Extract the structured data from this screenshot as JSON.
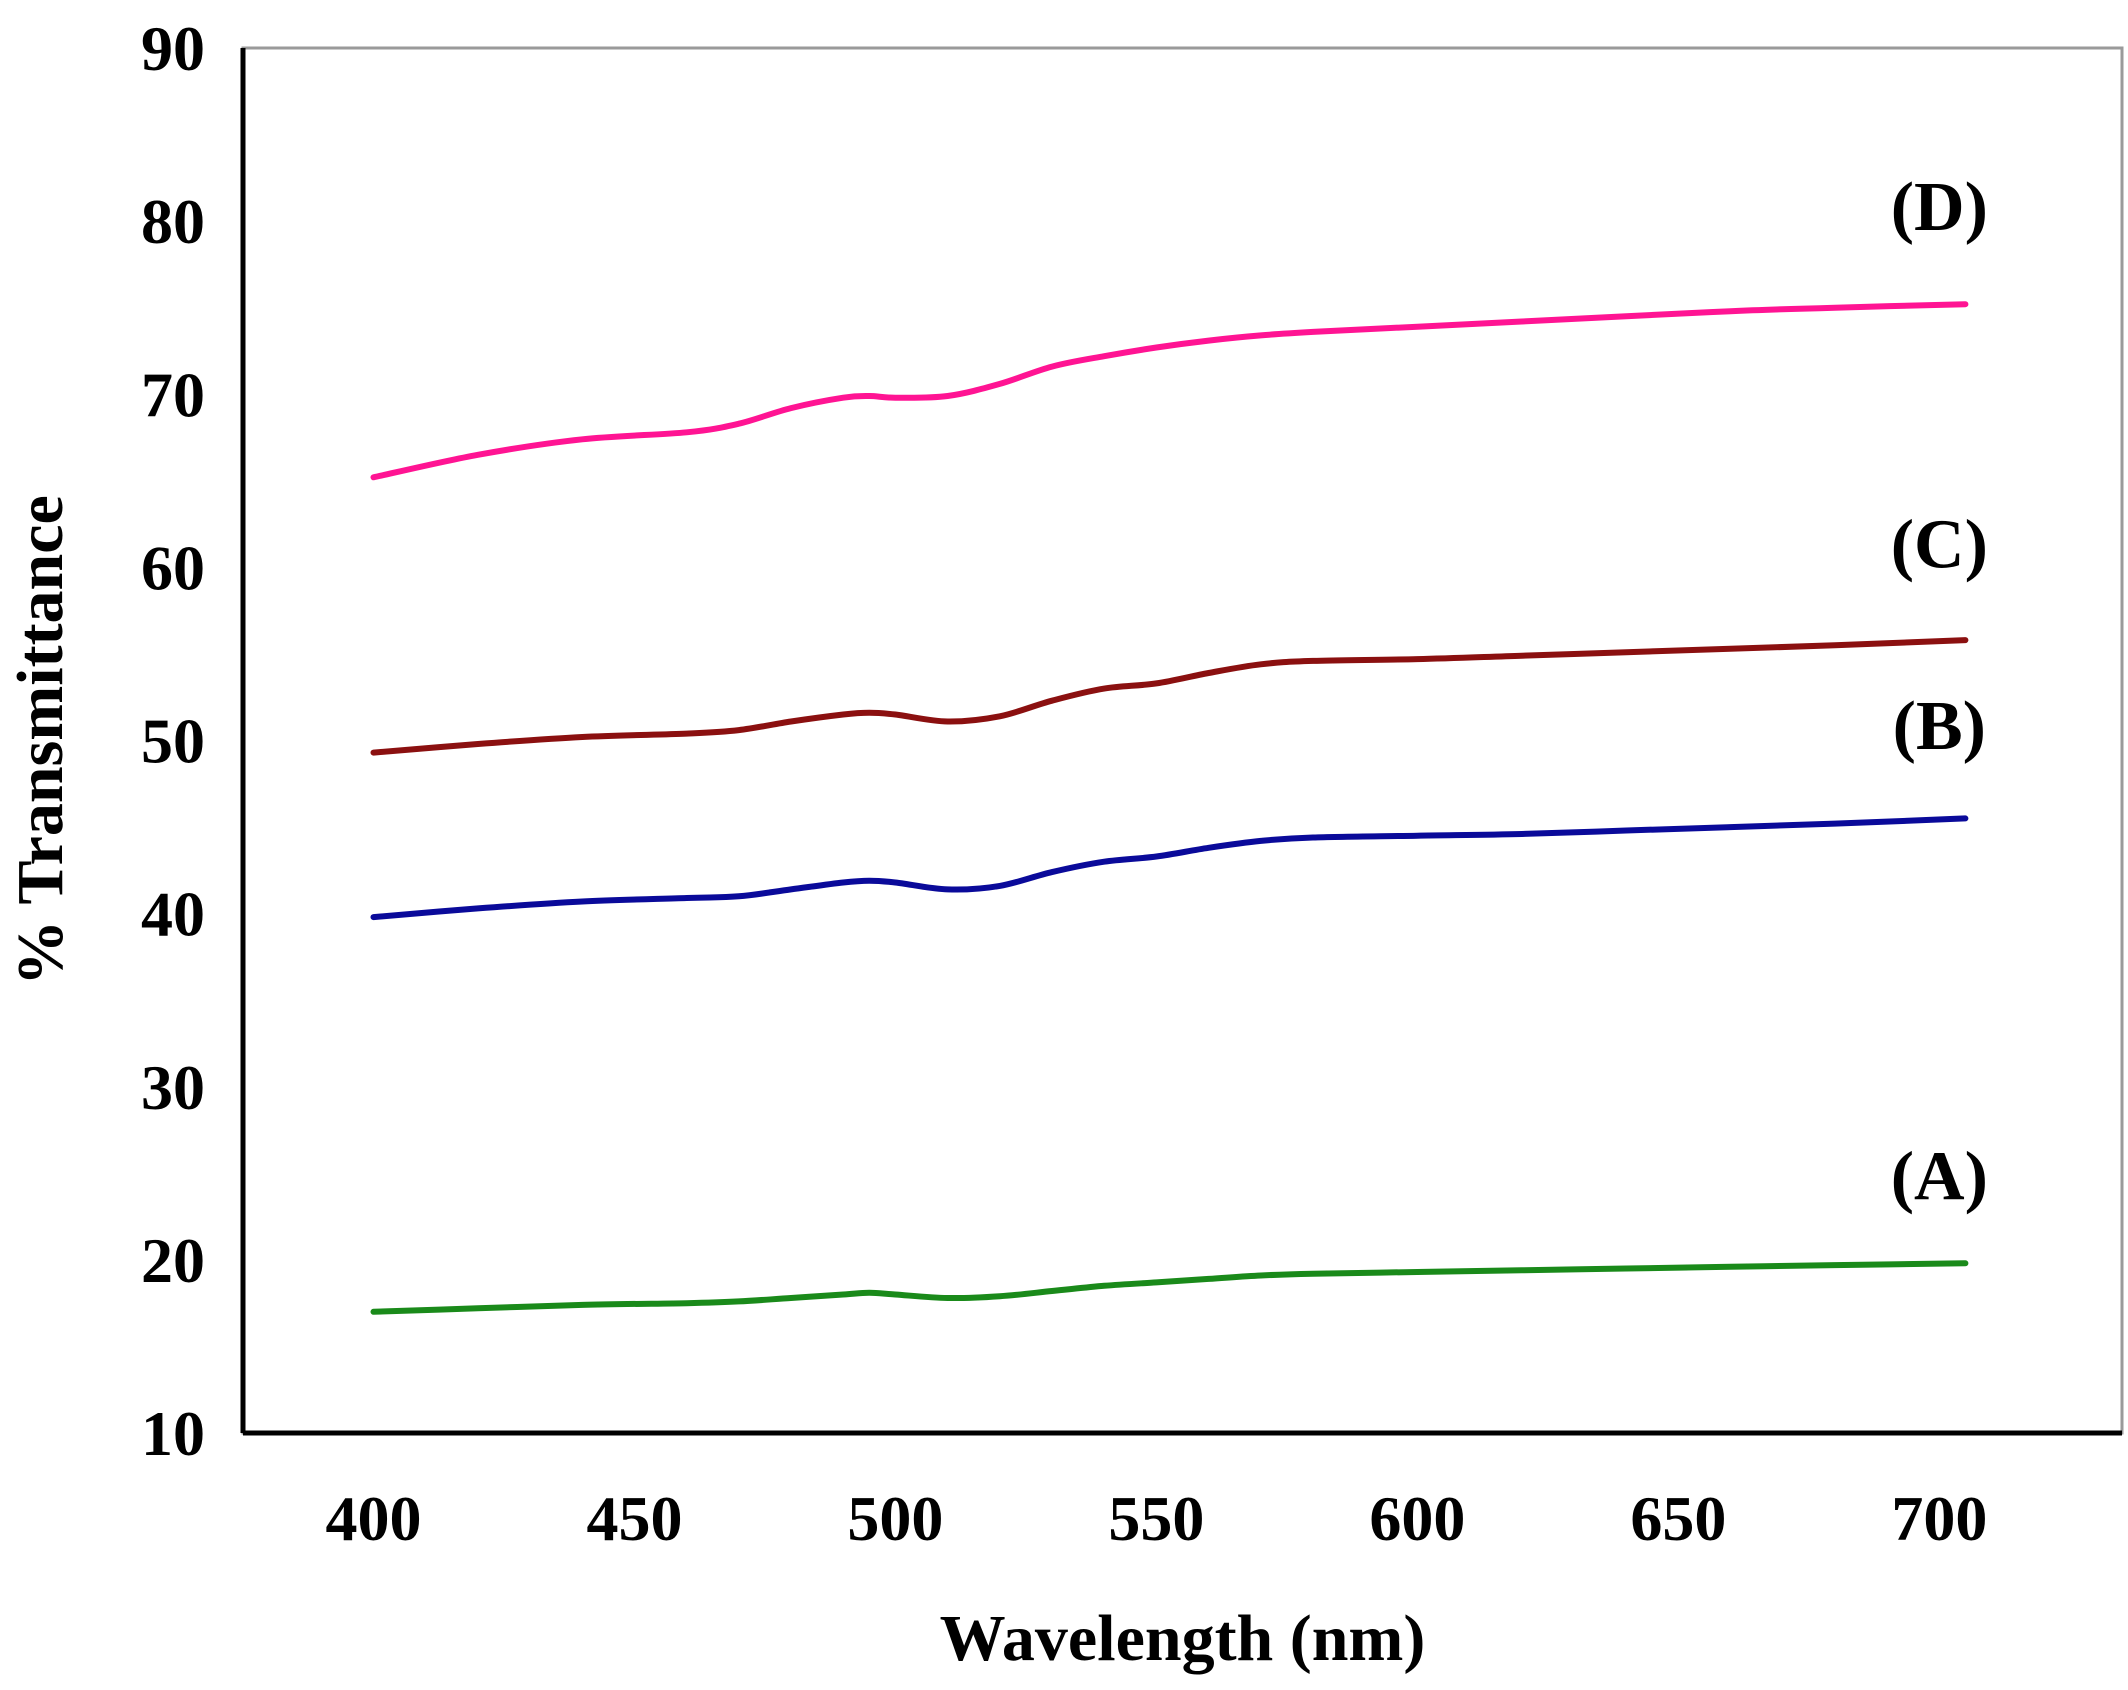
{
  "chart_data": {
    "type": "line",
    "title": "",
    "xlabel": "Wavelength (nm)",
    "ylabel": "% Transmittance",
    "xlim": [
      375,
      735
    ],
    "ylim": [
      10,
      90
    ],
    "xticks": [
      400,
      450,
      500,
      550,
      600,
      650,
      700
    ],
    "yticks": [
      10,
      20,
      30,
      40,
      50,
      60,
      70,
      80,
      90
    ],
    "xtick_labels": [
      "400",
      "450",
      "500",
      "550",
      "600",
      "650",
      "700"
    ],
    "ytick_labels": [
      "10",
      "20",
      "30",
      "40",
      "50",
      "60",
      "70",
      "80",
      "90"
    ],
    "grid": false,
    "legend": "none",
    "series": [
      {
        "name": "(A)",
        "color": "#1a8a1a",
        "label_at": [
          700,
          23.5
        ],
        "x": [
          400,
          420,
          440,
          460,
          470,
          480,
          490,
          495,
          500,
          510,
          520,
          530,
          540,
          550,
          560,
          570,
          580,
          600,
          620,
          640,
          660,
          680,
          705
        ],
        "y": [
          17.0,
          17.2,
          17.4,
          17.5,
          17.6,
          17.8,
          18.0,
          18.1,
          18.0,
          17.8,
          17.9,
          18.2,
          18.5,
          18.7,
          18.9,
          19.1,
          19.2,
          19.3,
          19.4,
          19.5,
          19.6,
          19.7,
          19.8
        ]
      },
      {
        "name": "(B)",
        "color": "#0a0a9a",
        "label_at": [
          700,
          49.5
        ],
        "x": [
          400,
          420,
          440,
          460,
          470,
          480,
          490,
          495,
          500,
          510,
          520,
          530,
          540,
          550,
          560,
          570,
          580,
          600,
          620,
          640,
          660,
          680,
          705
        ],
        "y": [
          39.8,
          40.3,
          40.7,
          40.9,
          41.0,
          41.4,
          41.8,
          41.9,
          41.8,
          41.4,
          41.6,
          42.4,
          43.0,
          43.3,
          43.8,
          44.2,
          44.4,
          44.5,
          44.6,
          44.8,
          45.0,
          45.2,
          45.5
        ]
      },
      {
        "name": "(C)",
        "color": "#8b1010",
        "label_at": [
          700,
          60.0
        ],
        "x": [
          400,
          420,
          440,
          460,
          470,
          480,
          490,
          495,
          500,
          510,
          520,
          530,
          540,
          550,
          560,
          570,
          580,
          600,
          620,
          640,
          660,
          680,
          705
        ],
        "y": [
          49.3,
          49.8,
          50.2,
          50.4,
          50.6,
          51.1,
          51.5,
          51.6,
          51.5,
          51.1,
          51.4,
          52.3,
          53.0,
          53.3,
          53.9,
          54.4,
          54.6,
          54.7,
          54.9,
          55.1,
          55.3,
          55.5,
          55.8
        ]
      },
      {
        "name": "(D)",
        "color": "#ff1493",
        "label_at": [
          700,
          79.5
        ],
        "x": [
          400,
          420,
          440,
          460,
          470,
          480,
          490,
          495,
          500,
          510,
          520,
          530,
          540,
          550,
          560,
          570,
          580,
          600,
          620,
          640,
          660,
          680,
          705
        ],
        "y": [
          65.2,
          66.5,
          67.4,
          67.8,
          68.3,
          69.2,
          69.8,
          69.9,
          69.8,
          69.9,
          70.6,
          71.6,
          72.2,
          72.7,
          73.1,
          73.4,
          73.6,
          73.9,
          74.2,
          74.5,
          74.8,
          75.0,
          75.2
        ]
      }
    ]
  }
}
